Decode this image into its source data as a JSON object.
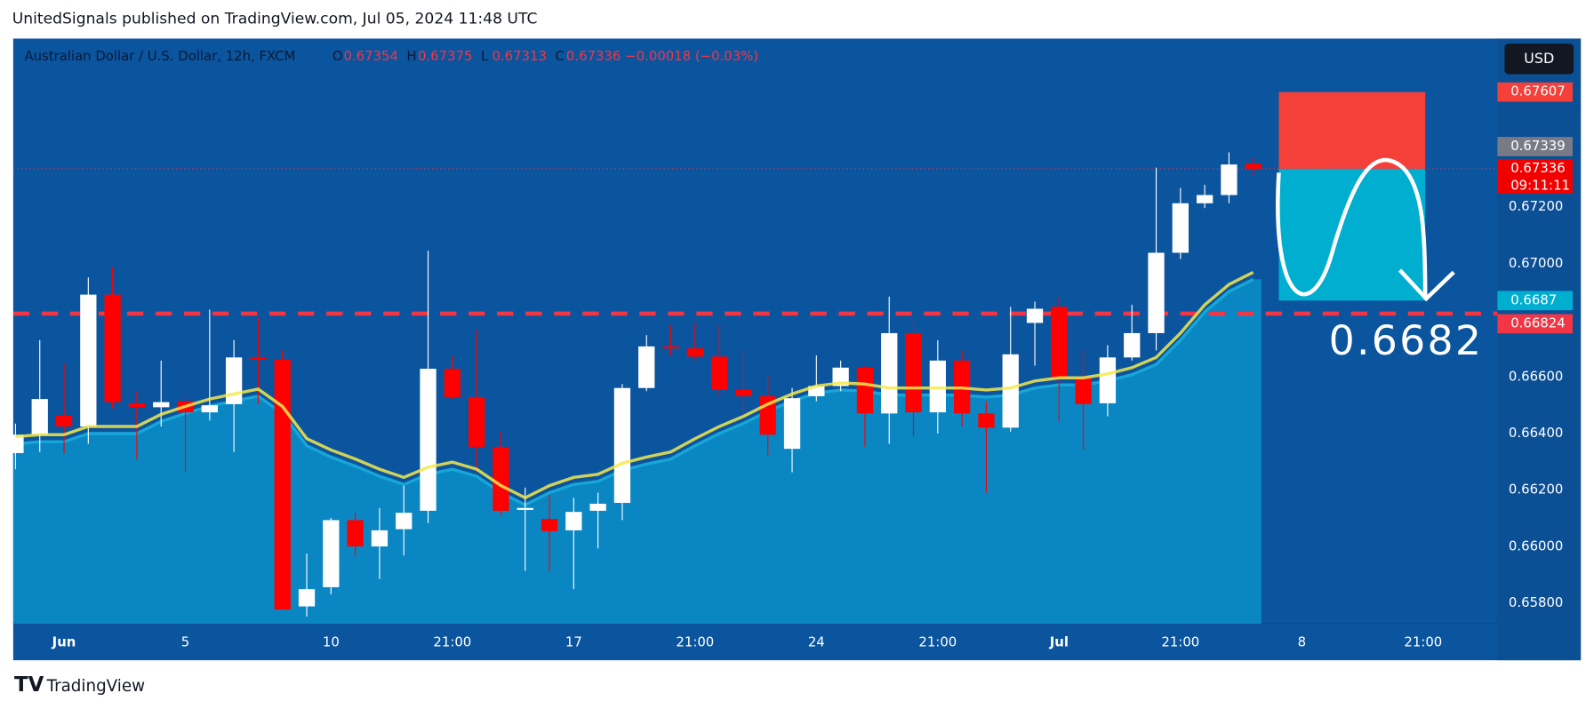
{
  "header": "UnitedSignals published on TradingView.com, Jul 05, 2024 11:48 UTC",
  "footer": "TradingView",
  "currency_button": "USD",
  "chart_data": {
    "type": "candlestick",
    "symbol": "Australian Dollar / U.S. Dollar, 12h, FXCM",
    "ohlc_labels": [
      "O",
      "H",
      "L",
      "C"
    ],
    "change": "−0.00018 (−0.03%)",
    "open": [
      0.66331,
      0.66396,
      0.66464,
      0.66425,
      0.66891,
      0.66507,
      0.66493,
      0.66514,
      0.66475,
      0.66504,
      0.66669,
      0.66662,
      0.65789,
      0.65857,
      0.66094,
      0.66001,
      0.66062,
      0.66127,
      0.66629,
      0.66529,
      0.66353,
      0.6613,
      0.66098,
      0.66058,
      0.66127,
      0.66155,
      0.66561,
      0.66708,
      0.66701,
      0.66672,
      0.66554,
      0.66532,
      0.66346,
      0.66532,
      0.66568,
      0.66633,
      0.66471,
      0.66755,
      0.66475,
      0.66658,
      0.66471,
      0.66421,
      0.66791,
      0.66848,
      0.66597,
      0.66507,
      0.66669,
      0.66755,
      0.67039,
      0.67214,
      0.67243,
      0.67354
    ],
    "high": [
      0.66435,
      0.6673,
      0.66647,
      0.66952,
      0.66988,
      0.6655,
      0.66658,
      0.66532,
      0.66838,
      0.6673,
      0.66809,
      0.66694,
      0.65976,
      0.66102,
      0.6612,
      0.66137,
      0.66216,
      0.67046,
      0.66676,
      0.66766,
      0.66407,
      0.66209,
      0.66184,
      0.66173,
      0.66191,
      0.66575,
      0.66748,
      0.66784,
      0.66791,
      0.66784,
      0.66694,
      0.66604,
      0.66561,
      0.66676,
      0.66658,
      0.6664,
      0.66884,
      0.66802,
      0.6673,
      0.66694,
      0.66514,
      0.66848,
      0.66866,
      0.66884,
      0.66694,
      0.66712,
      0.66855,
      0.6734,
      0.67268,
      0.67279,
      0.67394,
      0.67375
    ],
    "low": [
      0.66274,
      0.66335,
      0.66328,
      0.66364,
      0.66489,
      0.6631,
      0.66425,
      0.66263,
      0.66446,
      0.66335,
      0.66504,
      0.65778,
      0.65753,
      0.65832,
      0.65965,
      0.65886,
      0.65969,
      0.66084,
      0.66522,
      0.66263,
      0.66112,
      0.65915,
      0.65911,
      0.6585,
      0.65994,
      0.66094,
      0.6655,
      0.66676,
      0.66658,
      0.66532,
      0.66468,
      0.66324,
      0.66263,
      0.66514,
      0.6655,
      0.66353,
      0.66364,
      0.66389,
      0.664,
      0.66425,
      0.66191,
      0.66407,
      0.6664,
      0.66443,
      0.66342,
      0.66461,
      0.66658,
      0.66694,
      0.67017,
      0.67197,
      0.67214,
      0.67313
    ],
    "close": [
      0.66396,
      0.66522,
      0.66425,
      0.66891,
      0.66511,
      0.66493,
      0.66511,
      0.66475,
      0.665,
      0.66669,
      0.66662,
      0.65778,
      0.6585,
      0.66094,
      0.66001,
      0.66058,
      0.6612,
      0.66629,
      0.66529,
      0.66353,
      0.66127,
      0.66137,
      0.66055,
      0.66123,
      0.66152,
      0.66561,
      0.66708,
      0.66701,
      0.66672,
      0.66554,
      0.66532,
      0.66396,
      0.66525,
      0.66568,
      0.66633,
      0.66471,
      0.66755,
      0.66475,
      0.66658,
      0.66471,
      0.66421,
      0.6668,
      0.66841,
      0.66597,
      0.66504,
      0.66669,
      0.66755,
      0.67039,
      0.67214,
      0.67243,
      0.67351,
      0.67336
    ],
    "up_color": "#ffffff",
    "down_color": "#ff0000",
    "line": {
      "color": "#f5e94a",
      "values": [
        0.66389,
        0.66396,
        0.66396,
        0.66425,
        0.66425,
        0.66425,
        0.66468,
        0.66496,
        0.66522,
        0.6654,
        0.66557,
        0.66496,
        0.66382,
        0.66342,
        0.6631,
        0.66274,
        0.66245,
        0.66281,
        0.66299,
        0.66274,
        0.66216,
        0.66173,
        0.66216,
        0.66245,
        0.66256,
        0.66295,
        0.66317,
        0.66335,
        0.66382,
        0.66425,
        0.66461,
        0.66504,
        0.6654,
        0.66568,
        0.66579,
        0.66575,
        0.66561,
        0.66561,
        0.66561,
        0.66561,
        0.66554,
        0.66561,
        0.66586,
        0.66597,
        0.66597,
        0.66611,
        0.66633,
        0.66669,
        0.66755,
        0.66855,
        0.66927,
        0.6697
      ]
    },
    "area": {
      "color": "#0a86c2",
      "values": [
        0.66364,
        0.66371,
        0.66371,
        0.664,
        0.664,
        0.664,
        0.66443,
        0.66471,
        0.66497,
        0.66515,
        0.66532,
        0.66471,
        0.66357,
        0.66317,
        0.66285,
        0.66249,
        0.6622,
        0.66256,
        0.66274,
        0.66249,
        0.66191,
        0.66148,
        0.66191,
        0.6622,
        0.66231,
        0.6627,
        0.66292,
        0.6631,
        0.66357,
        0.664,
        0.66436,
        0.66479,
        0.66515,
        0.66543,
        0.66554,
        0.6655,
        0.66536,
        0.66536,
        0.66536,
        0.66536,
        0.66529,
        0.66536,
        0.66561,
        0.66572,
        0.66572,
        0.66586,
        0.66608,
        0.66644,
        0.6673,
        0.6683,
        0.66902,
        0.66945
      ]
    },
    "xlim": [
      -0.094,
      61.06
    ],
    "xticks": [
      {
        "value": 2,
        "label": "Jun"
      },
      {
        "value": 7,
        "label": "5"
      },
      {
        "value": 13,
        "label": "10"
      },
      {
        "value": 18,
        "label": "21:00"
      },
      {
        "value": 23,
        "label": "17"
      },
      {
        "value": 28,
        "label": "21:00"
      },
      {
        "value": 33,
        "label": "24"
      },
      {
        "value": 38,
        "label": "21:00"
      },
      {
        "value": 43,
        "label": "Jul"
      },
      {
        "value": 48,
        "label": "21:00"
      },
      {
        "value": 53,
        "label": "8"
      },
      {
        "value": 58,
        "label": "21:00"
      }
    ],
    "ylim": [
      0.65728,
      0.67796
    ],
    "yticks": [
      {
        "value": 0.658,
        "label": "0.65800"
      },
      {
        "value": 0.66,
        "label": "0.66000"
      },
      {
        "value": 0.662,
        "label": "0.66200"
      },
      {
        "value": 0.664,
        "label": "0.66400"
      },
      {
        "value": 0.666,
        "label": "0.66600"
      },
      {
        "value": 0.67,
        "label": "0.67000"
      },
      {
        "value": 0.672,
        "label": "0.67200"
      }
    ],
    "hline": {
      "value": 0.66824,
      "color": "#f23645"
    },
    "position": {
      "stop": 0.67607,
      "entry": 0.67336,
      "target": 0.6687,
      "stop_color": "#f5403a",
      "target_color": "#00aecf"
    },
    "bid": {
      "value": 0.67339,
      "color": "#787b86"
    },
    "countdown": "09:11:11",
    "annotation": "0.6682"
  }
}
